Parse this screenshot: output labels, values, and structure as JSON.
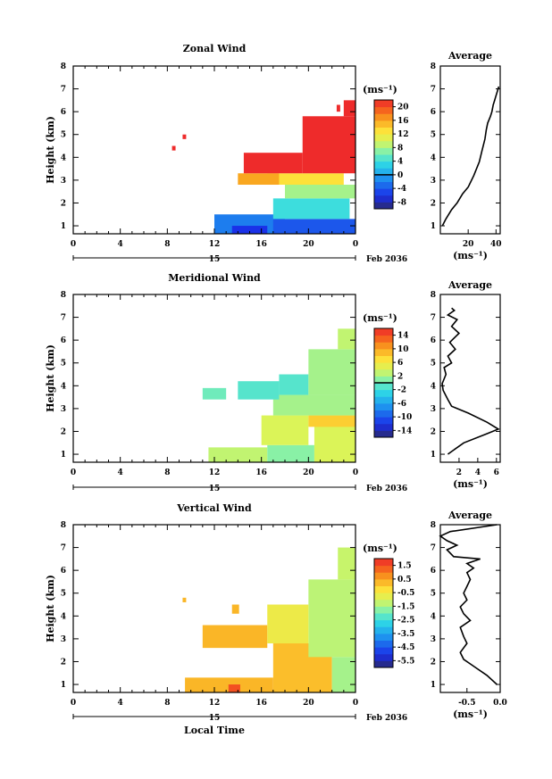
{
  "footer": {
    "xlabel": "Local Time"
  },
  "chart_data": [
    {
      "type": "heatmap",
      "title": "Zonal Wind",
      "ylabel": "Height (km)",
      "xlabel": "",
      "x_ticks": [
        "0",
        "4",
        "8",
        "12",
        "16",
        "20",
        "0"
      ],
      "y_ticks": [
        "1",
        "2",
        "3",
        "4",
        "5",
        "6",
        "7",
        "8"
      ],
      "ylim": [
        0.65,
        8
      ],
      "xlim": [
        0,
        24
      ],
      "date_day": "15",
      "date_label": "Feb 2036",
      "colorbar": {
        "unit": "(ms⁻¹)",
        "range": [
          -10,
          22
        ],
        "ticks": [
          "20",
          "16",
          "12",
          "8",
          "4",
          "0",
          "-4",
          "-8"
        ],
        "tick_values": [
          20,
          16,
          12,
          8,
          4,
          0,
          -4,
          -8
        ],
        "zero_line": 0
      },
      "field": {
        "regions": [
          {
            "t": [
              12.0,
              18.0
            ],
            "z": [
              0.65,
              1.5
            ],
            "v": -2
          },
          {
            "t": [
              13.5,
              16.5
            ],
            "z": [
              0.65,
              1.0
            ],
            "v": -6
          },
          {
            "t": [
              17.0,
              24.0
            ],
            "z": [
              0.65,
              1.3
            ],
            "v": -4
          },
          {
            "t": [
              17.0,
              23.5
            ],
            "z": [
              1.3,
              2.2
            ],
            "v": 4
          },
          {
            "t": [
              18.0,
              24.0
            ],
            "z": [
              2.2,
              2.8
            ],
            "v": 8
          },
          {
            "t": [
              16.5,
              23.0
            ],
            "z": [
              2.8,
              3.3
            ],
            "v": 13
          },
          {
            "t": [
              14.0,
              17.5
            ],
            "z": [
              2.8,
              3.3
            ],
            "v": 16
          },
          {
            "t": [
              14.5,
              19.5
            ],
            "z": [
              3.3,
              4.2
            ],
            "v": 22
          },
          {
            "t": [
              19.5,
              24.0
            ],
            "z": [
              3.3,
              5.8
            ],
            "v": 22
          },
          {
            "t": [
              23.0,
              24.0
            ],
            "z": [
              5.8,
              6.5
            ],
            "v": 22
          },
          {
            "t": [
              8.4,
              8.7
            ],
            "z": [
              4.3,
              4.5
            ],
            "v": 22
          },
          {
            "t": [
              9.3,
              9.6
            ],
            "z": [
              4.8,
              5.0
            ],
            "v": 22
          },
          {
            "t": [
              22.4,
              22.7
            ],
            "z": [
              6.0,
              6.3
            ],
            "v": 22
          }
        ]
      },
      "profile": {
        "title": "Average",
        "xlabel": "(ms⁻¹)",
        "x_ticks": [
          "20",
          "40"
        ],
        "x_tick_values": [
          20,
          40
        ],
        "xlim": [
          0,
          43
        ],
        "x": [
          1.5,
          4,
          8,
          12,
          16,
          20,
          24,
          28,
          30,
          32,
          33,
          34,
          36,
          37,
          38,
          39,
          40,
          41,
          42
        ],
        "z": [
          1.0,
          1.3,
          1.7,
          2.0,
          2.4,
          2.7,
          3.2,
          3.8,
          4.3,
          4.8,
          5.2,
          5.5,
          5.8,
          6.0,
          6.3,
          6.5,
          6.7,
          6.9,
          7.1
        ]
      }
    },
    {
      "type": "heatmap",
      "title": "Meridional Wind",
      "ylabel": "Height (km)",
      "xlabel": "",
      "x_ticks": [
        "0",
        "4",
        "8",
        "12",
        "16",
        "20",
        "0"
      ],
      "y_ticks": [
        "1",
        "2",
        "3",
        "4",
        "5",
        "6",
        "7",
        "8"
      ],
      "ylim": [
        0.65,
        8
      ],
      "xlim": [
        0,
        24
      ],
      "date_day": "15",
      "date_label": "Feb 2036",
      "colorbar": {
        "unit": "(ms⁻¹)",
        "range": [
          -16,
          16
        ],
        "ticks": [
          "14",
          "10",
          "6",
          "2",
          "-2",
          "-6",
          "-10",
          "-14"
        ],
        "tick_values": [
          14,
          10,
          6,
          2,
          -2,
          -6,
          -10,
          -14
        ],
        "zero_line": 0
      },
      "field": {
        "regions": [
          {
            "t": [
              11.5,
              16.5
            ],
            "z": [
              0.65,
              1.3
            ],
            "v": 3
          },
          {
            "t": [
              16.5,
              20.5
            ],
            "z": [
              0.65,
              1.4
            ],
            "v": 1
          },
          {
            "t": [
              20.5,
              24.0
            ],
            "z": [
              0.65,
              2.5
            ],
            "v": 4
          },
          {
            "t": [
              16.0,
              20.0
            ],
            "z": [
              1.4,
              2.7
            ],
            "v": 4
          },
          {
            "t": [
              20.0,
              24.0
            ],
            "z": [
              2.2,
              2.7
            ],
            "v": 8
          },
          {
            "t": [
              17.0,
              24.0
            ],
            "z": [
              2.7,
              3.6
            ],
            "v": 2
          },
          {
            "t": [
              11.0,
              13.0
            ],
            "z": [
              3.4,
              3.9
            ],
            "v": 0
          },
          {
            "t": [
              14.0,
              17.5
            ],
            "z": [
              3.4,
              4.2
            ],
            "v": -1
          },
          {
            "t": [
              17.5,
              20.0
            ],
            "z": [
              3.6,
              4.5
            ],
            "v": -1
          },
          {
            "t": [
              20.0,
              24.0
            ],
            "z": [
              3.6,
              5.6
            ],
            "v": 2
          },
          {
            "t": [
              22.5,
              24.0
            ],
            "z": [
              5.6,
              6.5
            ],
            "v": 3
          }
        ]
      },
      "profile": {
        "title": "Average",
        "xlabel": "(ms⁻¹)",
        "x_ticks": [
          "2",
          "4",
          "6"
        ],
        "x_tick_values": [
          2,
          4,
          6
        ],
        "xlim": [
          0,
          6.4
        ],
        "x": [
          0.8,
          2.5,
          5.0,
          6.2,
          5.0,
          3.0,
          1.2,
          0.8,
          0.3,
          0.2,
          0.6,
          0.4,
          1.2,
          0.8,
          1.6,
          1.0,
          2.0,
          1.2,
          1.8,
          0.8,
          1.5,
          1.2
        ],
        "z": [
          1.0,
          1.5,
          1.9,
          2.1,
          2.4,
          2.8,
          3.1,
          3.4,
          3.8,
          4.1,
          4.5,
          4.8,
          5.0,
          5.3,
          5.6,
          5.9,
          6.3,
          6.6,
          6.9,
          7.1,
          7.3,
          7.4
        ]
      }
    },
    {
      "type": "heatmap",
      "title": "Vertical Wind",
      "ylabel": "Height (km)",
      "xlabel": "",
      "x_ticks": [
        "0",
        "4",
        "8",
        "12",
        "16",
        "20",
        "0"
      ],
      "y_ticks": [
        "1",
        "2",
        "3",
        "4",
        "5",
        "6",
        "7",
        "8"
      ],
      "ylim": [
        0.65,
        8
      ],
      "xlim": [
        0,
        24
      ],
      "date_day": "15",
      "date_label": "Feb 2036",
      "colorbar": {
        "unit": "(ms⁻¹)",
        "range": [
          -6.0,
          2.0
        ],
        "ticks": [
          "1.5",
          "0.5",
          "-0.5",
          "-1.5",
          "-2.5",
          "-3.5",
          "-4.5",
          "-5.5"
        ],
        "tick_values": [
          1.5,
          0.5,
          -0.5,
          -1.5,
          -2.5,
          -3.5,
          -4.5,
          -5.5
        ],
        "zero_line": null
      },
      "field": {
        "regions": [
          {
            "t": [
              9.5,
              17.0
            ],
            "z": [
              0.65,
              1.3
            ],
            "v": 0.3
          },
          {
            "t": [
              13.2,
              14.2
            ],
            "z": [
              0.65,
              1.0
            ],
            "v": 1.5
          },
          {
            "t": [
              17.0,
              22.0
            ],
            "z": [
              0.65,
              2.8
            ],
            "v": 0.2
          },
          {
            "t": [
              22.0,
              24.0
            ],
            "z": [
              0.65,
              2.2
            ],
            "v": -1.5
          },
          {
            "t": [
              20.0,
              24.0
            ],
            "z": [
              2.2,
              5.6
            ],
            "v": -1.3
          },
          {
            "t": [
              11.0,
              16.5
            ],
            "z": [
              2.6,
              3.6
            ],
            "v": 0.3
          },
          {
            "t": [
              16.5,
              20.0
            ],
            "z": [
              2.8,
              4.5
            ],
            "v": -0.6
          },
          {
            "t": [
              22.5,
              24.0
            ],
            "z": [
              5.6,
              7.0
            ],
            "v": -1.2
          },
          {
            "t": [
              9.3,
              9.6
            ],
            "z": [
              4.6,
              4.8
            ],
            "v": 0.3
          },
          {
            "t": [
              13.5,
              14.1
            ],
            "z": [
              4.1,
              4.5
            ],
            "v": 0.3
          }
        ]
      },
      "profile": {
        "title": "Average",
        "xlabel": "(ms⁻¹)",
        "x_ticks": [
          "-0.5",
          "0.0"
        ],
        "x_tick_values": [
          -0.5,
          0.0
        ],
        "xlim": [
          -0.9,
          0.0
        ],
        "x": [
          -0.05,
          -0.2,
          -0.35,
          -0.45,
          -0.55,
          -0.6,
          -0.5,
          -0.55,
          -0.6,
          -0.45,
          -0.55,
          -0.6,
          -0.5,
          -0.55,
          -0.5,
          -0.45,
          -0.5,
          -0.4,
          -0.5,
          -0.3,
          -0.7,
          -0.8,
          -0.65,
          -0.8,
          -0.9,
          -0.75,
          -0.05
        ],
        "z": [
          1.0,
          1.4,
          1.7,
          1.9,
          2.1,
          2.4,
          2.8,
          3.1,
          3.5,
          3.8,
          4.1,
          4.4,
          4.7,
          5.0,
          5.3,
          5.6,
          5.9,
          6.1,
          6.3,
          6.5,
          6.6,
          6.9,
          7.1,
          7.3,
          7.5,
          7.7,
          8.0
        ]
      }
    }
  ]
}
